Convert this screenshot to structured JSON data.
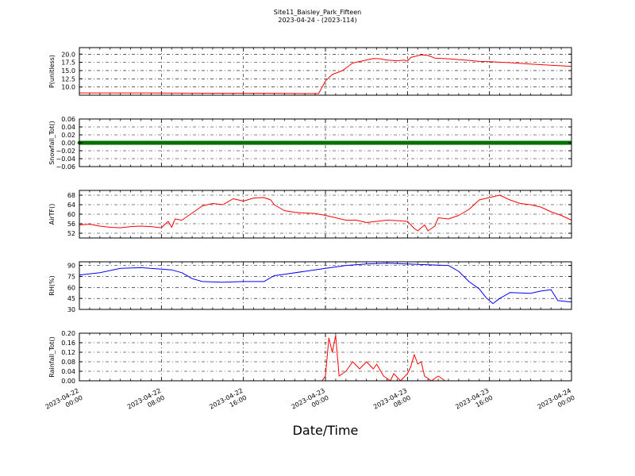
{
  "title": "Site11_Baisley_Park_Fifteen",
  "subtitle": "2023-04-24 - (2023-114)",
  "xlabel": "Date/Time",
  "chart_data": {
    "type": "line",
    "title": "Site11_Baisley_Park_Fifteen",
    "subtitle": "2023-04-24 - (2023-114)",
    "xlabel": "Date/Time",
    "xlim": [
      "2023-04-22 00:00",
      "2023-04-24 00:00"
    ],
    "x_ticks": [
      "2023-04-22 00:00",
      "2023-04-22 08:00",
      "2023-04-22 16:00",
      "2023-04-23 00:00",
      "2023-04-23 08:00",
      "2023-04-23 16:00",
      "2023-04-24 00:00"
    ],
    "x_tick_labels": [
      [
        "2023-04-22",
        "00:00"
      ],
      [
        "2023-04-22",
        "08:00"
      ],
      [
        "2023-04-22",
        "16:00"
      ],
      [
        "2023-04-23",
        "00:00"
      ],
      [
        "2023-04-23",
        "08:00"
      ],
      [
        "2023-04-23",
        "16:00"
      ],
      [
        "2023-04-24",
        "00:00"
      ]
    ],
    "grid": true,
    "panels": [
      {
        "ylabel": "P(unitless)",
        "color": "#ff0000",
        "marker": false,
        "ylim": [
          7.5,
          22.0
        ],
        "yticks": [
          10.0,
          12.5,
          15.0,
          17.5,
          20.0
        ],
        "ytick_labels": [
          "10.0",
          "12.5",
          "15.0",
          "17.5",
          "20.0"
        ],
        "points": [
          [
            "2023-04-22 00:00",
            8.2
          ],
          [
            "2023-04-22 06:00",
            8.2
          ],
          [
            "2023-04-22 12:00",
            8.1
          ],
          [
            "2023-04-22 18:00",
            8.1
          ],
          [
            "2023-04-22 22:00",
            8.0
          ],
          [
            "2023-04-22 23:20",
            8.0
          ],
          [
            "2023-04-23 00:00",
            11.8
          ],
          [
            "2023-04-23 00:40",
            13.8
          ],
          [
            "2023-04-23 01:40",
            15.0
          ],
          [
            "2023-04-23 02:40",
            17.3
          ],
          [
            "2023-04-23 03:40",
            18.0
          ],
          [
            "2023-04-23 04:40",
            18.7
          ],
          [
            "2023-04-23 05:20",
            18.6
          ],
          [
            "2023-04-23 06:00",
            18.2
          ],
          [
            "2023-04-23 07:00",
            18.0
          ],
          [
            "2023-04-23 07:40",
            18.2
          ],
          [
            "2023-04-23 08:00",
            17.9
          ],
          [
            "2023-04-23 08:20",
            19.0
          ],
          [
            "2023-04-23 09:20",
            19.8
          ],
          [
            "2023-04-23 10:00",
            19.6
          ],
          [
            "2023-04-23 10:40",
            18.8
          ],
          [
            "2023-04-23 12:00",
            18.6
          ],
          [
            "2023-04-23 14:00",
            18.1
          ],
          [
            "2023-04-23 15:00",
            17.8
          ],
          [
            "2023-04-23 16:00",
            17.7
          ],
          [
            "2023-04-23 18:00",
            17.4
          ],
          [
            "2023-04-23 20:00",
            17.0
          ],
          [
            "2023-04-23 22:00",
            16.6
          ],
          [
            "2023-04-24 00:00",
            16.3
          ]
        ]
      },
      {
        "ylabel": "Snowfall_Tot()",
        "color": "#007700",
        "marker": true,
        "ylim": [
          -0.06,
          0.06
        ],
        "yticks": [
          -0.06,
          -0.04,
          -0.02,
          0.0,
          0.02,
          0.04,
          0.06
        ],
        "ytick_labels": [
          "−0.06",
          "−0.04",
          "−0.02",
          "0.00",
          "0.02",
          "0.04",
          "0.06"
        ],
        "points": [
          [
            "2023-04-22 00:00",
            0.0
          ],
          [
            "2023-04-24 00:00",
            0.0
          ]
        ]
      },
      {
        "ylabel": "AirTF()",
        "color": "#ff0000",
        "marker": false,
        "ylim": [
          50,
          70
        ],
        "yticks": [
          52,
          56,
          60,
          64,
          68
        ],
        "ytick_labels": [
          "52",
          "56",
          "60",
          "64",
          "68"
        ],
        "points": [
          [
            "2023-04-22 00:00",
            55.5
          ],
          [
            "2023-04-22 01:00",
            55.8
          ],
          [
            "2023-04-22 02:00",
            55.0
          ],
          [
            "2023-04-22 03:00",
            54.5
          ],
          [
            "2023-04-22 04:00",
            54.3
          ],
          [
            "2023-04-22 05:00",
            54.8
          ],
          [
            "2023-04-22 06:00",
            55.0
          ],
          [
            "2023-04-22 07:00",
            54.8
          ],
          [
            "2023-04-22 08:00",
            54.3
          ],
          [
            "2023-04-22 08:40",
            57.0
          ],
          [
            "2023-04-22 09:00",
            54.5
          ],
          [
            "2023-04-22 09:20",
            58.0
          ],
          [
            "2023-04-22 10:00",
            57.5
          ],
          [
            "2023-04-22 11:00",
            60.5
          ],
          [
            "2023-04-22 12:00",
            63.5
          ],
          [
            "2023-04-22 13:00",
            64.5
          ],
          [
            "2023-04-22 14:00",
            64.0
          ],
          [
            "2023-04-22 15:00",
            66.5
          ],
          [
            "2023-04-22 16:00",
            65.5
          ],
          [
            "2023-04-22 17:00",
            66.8
          ],
          [
            "2023-04-22 18:00",
            67.0
          ],
          [
            "2023-04-22 18:40",
            66.0
          ],
          [
            "2023-04-22 19:00",
            64.0
          ],
          [
            "2023-04-22 20:00",
            61.5
          ],
          [
            "2023-04-22 21:00",
            60.8
          ],
          [
            "2023-04-22 22:00",
            60.5
          ],
          [
            "2023-04-22 23:00",
            60.3
          ],
          [
            "2023-04-23 00:00",
            59.5
          ],
          [
            "2023-04-23 01:00",
            58.5
          ],
          [
            "2023-04-23 02:00",
            57.5
          ],
          [
            "2023-04-23 03:00",
            57.5
          ],
          [
            "2023-04-23 04:00",
            56.5
          ],
          [
            "2023-04-23 05:00",
            57.0
          ],
          [
            "2023-04-23 06:00",
            57.5
          ],
          [
            "2023-04-23 07:00",
            57.3
          ],
          [
            "2023-04-23 08:00",
            57.0
          ],
          [
            "2023-04-23 08:40",
            54.0
          ],
          [
            "2023-04-23 09:00",
            53.0
          ],
          [
            "2023-04-23 09:40",
            55.5
          ],
          [
            "2023-04-23 10:00",
            53.0
          ],
          [
            "2023-04-23 10:40",
            55.0
          ],
          [
            "2023-04-23 11:00",
            58.5
          ],
          [
            "2023-04-23 12:00",
            58.0
          ],
          [
            "2023-04-23 13:00",
            59.5
          ],
          [
            "2023-04-23 14:00",
            62.0
          ],
          [
            "2023-04-23 15:00",
            66.0
          ],
          [
            "2023-04-23 16:00",
            67.0
          ],
          [
            "2023-04-23 17:00",
            68.0
          ],
          [
            "2023-04-23 18:00",
            66.0
          ],
          [
            "2023-04-23 19:00",
            64.5
          ],
          [
            "2023-04-23 20:00",
            64.0
          ],
          [
            "2023-04-23 21:00",
            63.0
          ],
          [
            "2023-04-23 22:00",
            61.0
          ],
          [
            "2023-04-23 23:00",
            59.5
          ],
          [
            "2023-04-24 00:00",
            57.5
          ]
        ]
      },
      {
        "ylabel": "RH(%)",
        "color": "#0000ff",
        "marker": false,
        "ylim": [
          30,
          95
        ],
        "yticks": [
          30,
          45,
          60,
          75,
          90
        ],
        "ytick_labels": [
          "30",
          "45",
          "60",
          "75",
          "90"
        ],
        "points": [
          [
            "2023-04-22 00:00",
            77
          ],
          [
            "2023-04-22 02:00",
            80
          ],
          [
            "2023-04-22 04:00",
            86
          ],
          [
            "2023-04-22 06:00",
            87
          ],
          [
            "2023-04-22 08:00",
            85
          ],
          [
            "2023-04-22 09:00",
            84
          ],
          [
            "2023-04-22 10:00",
            80
          ],
          [
            "2023-04-22 11:00",
            72
          ],
          [
            "2023-04-22 12:00",
            68
          ],
          [
            "2023-04-22 14:00",
            67
          ],
          [
            "2023-04-22 16:00",
            68
          ],
          [
            "2023-04-22 18:00",
            68
          ],
          [
            "2023-04-22 19:00",
            76
          ],
          [
            "2023-04-22 20:00",
            78
          ],
          [
            "2023-04-22 22:00",
            82
          ],
          [
            "2023-04-23 00:00",
            86
          ],
          [
            "2023-04-23 02:00",
            90
          ],
          [
            "2023-04-23 04:00",
            92
          ],
          [
            "2023-04-23 06:00",
            93
          ],
          [
            "2023-04-23 08:00",
            92
          ],
          [
            "2023-04-23 10:00",
            91
          ],
          [
            "2023-04-23 12:00",
            90
          ],
          [
            "2023-04-23 13:00",
            82
          ],
          [
            "2023-04-23 14:00",
            68
          ],
          [
            "2023-04-23 15:00",
            58
          ],
          [
            "2023-04-23 15:40",
            46
          ],
          [
            "2023-04-23 16:20",
            38
          ],
          [
            "2023-04-23 17:00",
            45
          ],
          [
            "2023-04-23 18:00",
            53
          ],
          [
            "2023-04-23 20:00",
            52
          ],
          [
            "2023-04-23 21:00",
            55
          ],
          [
            "2023-04-23 22:00",
            57
          ],
          [
            "2023-04-23 22:40",
            42
          ],
          [
            "2023-04-24 00:00",
            40
          ]
        ]
      },
      {
        "ylabel": "Rainfall_Tot()",
        "color": "#ff0000",
        "marker": false,
        "ylim": [
          0.0,
          0.2
        ],
        "yticks": [
          0.0,
          0.04,
          0.08,
          0.12,
          0.16,
          0.2
        ],
        "ytick_labels": [
          "0.00",
          "0.04",
          "0.08",
          "0.12",
          "0.16",
          "0.20"
        ],
        "points": [
          [
            "2023-04-22 00:00",
            0.0
          ],
          [
            "2023-04-22 23:40",
            0.0
          ],
          [
            "2023-04-23 00:00",
            0.02
          ],
          [
            "2023-04-23 00:20",
            0.18
          ],
          [
            "2023-04-23 00:40",
            0.12
          ],
          [
            "2023-04-23 01:00",
            0.19
          ],
          [
            "2023-04-23 01:20",
            0.02
          ],
          [
            "2023-04-23 02:00",
            0.04
          ],
          [
            "2023-04-23 02:40",
            0.08
          ],
          [
            "2023-04-23 03:20",
            0.05
          ],
          [
            "2023-04-23 04:00",
            0.08
          ],
          [
            "2023-04-23 04:40",
            0.05
          ],
          [
            "2023-04-23 05:00",
            0.07
          ],
          [
            "2023-04-23 05:40",
            0.02
          ],
          [
            "2023-04-23 06:20",
            0.0
          ],
          [
            "2023-04-23 06:40",
            0.03
          ],
          [
            "2023-04-23 07:20",
            0.0
          ],
          [
            "2023-04-23 08:00",
            0.03
          ],
          [
            "2023-04-23 08:20",
            0.06
          ],
          [
            "2023-04-23 08:40",
            0.11
          ],
          [
            "2023-04-23 09:00",
            0.07
          ],
          [
            "2023-04-23 09:20",
            0.08
          ],
          [
            "2023-04-23 09:40",
            0.02
          ],
          [
            "2023-04-23 10:20",
            0.0
          ],
          [
            "2023-04-23 11:00",
            0.02
          ],
          [
            "2023-04-23 11:40",
            0.0
          ],
          [
            "2023-04-24 00:00",
            0.0
          ]
        ]
      }
    ]
  }
}
